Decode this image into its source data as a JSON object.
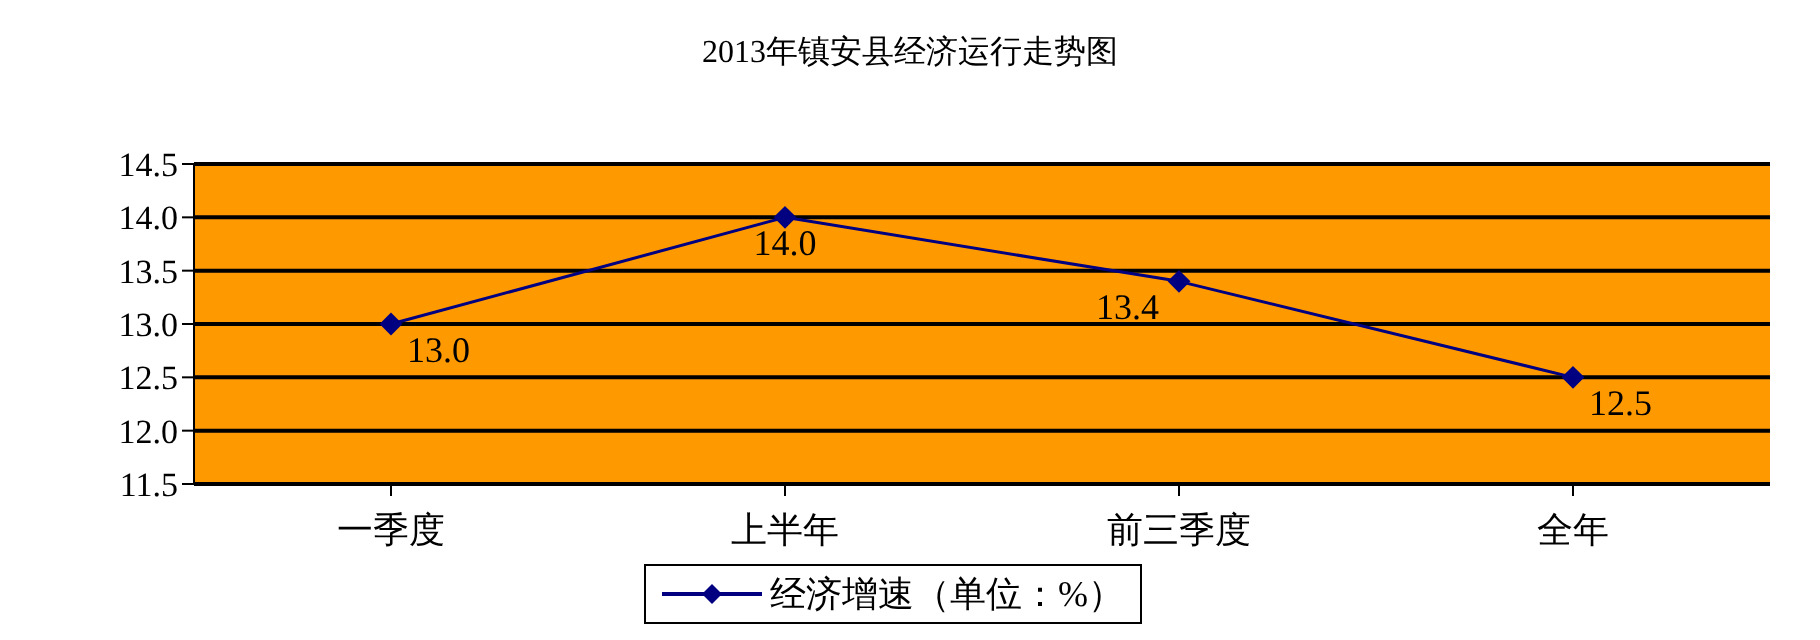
{
  "chart_data": {
    "type": "line",
    "title": "2013年镇安县经济运行走势图",
    "categories": [
      "一季度",
      "上半年",
      "前三季度",
      "全年"
    ],
    "series": [
      {
        "name": "经济增速（单位：%）",
        "color": "#000080",
        "values": [
          13.0,
          14.0,
          13.4,
          12.5
        ],
        "value_labels": [
          "13.0",
          "14.0",
          "13.4",
          "12.5"
        ]
      }
    ],
    "ylim": [
      11.5,
      14.5
    ],
    "yticks": [
      {
        "value": 11.5,
        "label": "11.5"
      },
      {
        "value": 12,
        "label": "12.0"
      },
      {
        "value": 12.5,
        "label": "12.5"
      },
      {
        "value": 13,
        "label": "13.0"
      },
      {
        "value": 13.5,
        "label": "13.5"
      },
      {
        "value": 14,
        "label": "14.0"
      },
      {
        "value": 14.5,
        "label": "14.5"
      }
    ],
    "grid": "y",
    "legend": "bottom",
    "marker": "diamond",
    "line_style": "solid"
  }
}
